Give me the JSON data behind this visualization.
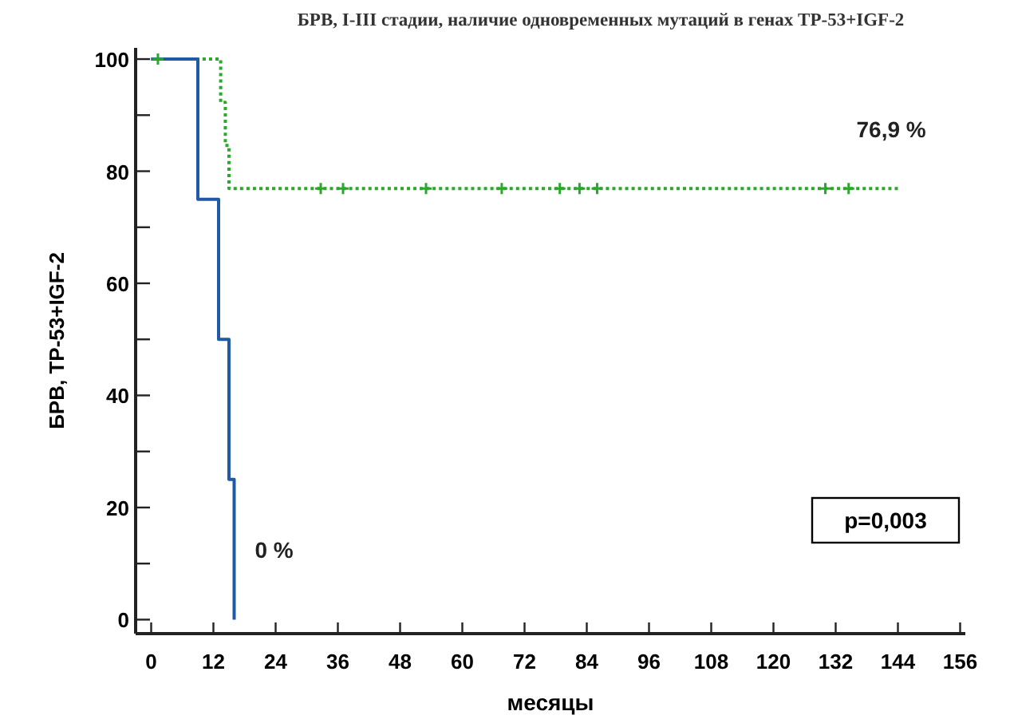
{
  "chart_data": {
    "type": "step",
    "title": "БРВ, I-III  стадии, наличие одновременных мутаций в генах TP-53+IGF-2",
    "xlabel": "месяцы",
    "ylabel": "БРВ, TP-53+IGF-2",
    "xlim": [
      -3,
      157
    ],
    "xticks": [
      0,
      12,
      24,
      36,
      48,
      60,
      72,
      84,
      96,
      108,
      120,
      132,
      144,
      156
    ],
    "ylim": [
      -2.5,
      102
    ],
    "yticks": [
      0,
      {
        "value": 10,
        "label": null
      },
      20,
      {
        "value": 30,
        "label": null
      },
      40,
      {
        "value": 50,
        "label": null
      },
      60,
      {
        "value": 70,
        "label": null
      },
      80,
      {
        "value": 90,
        "label": null
      },
      100
    ],
    "grid": false,
    "series": [
      {
        "color": "#2aa82a",
        "line_style": "dotted",
        "x": [
          0,
          13.4,
          14.3,
          15,
          144
        ],
        "values": [
          100,
          92.3,
          84.6,
          76.9,
          76.9
        ]
      },
      {
        "color": "#1f5aa6",
        "line_style": "solid",
        "x": [
          0,
          9,
          13,
          15,
          16
        ],
        "values": [
          100,
          75,
          50,
          25,
          0
        ]
      },
      {
        "type": "scatter",
        "marker": "cross",
        "color": "#2aa82a",
        "x": [
          1.3,
          32.7,
          37,
          53,
          67.6,
          78.8,
          82.6,
          86,
          130,
          134.5
        ],
        "values": [
          100,
          76.9,
          76.9,
          76.9,
          76.9,
          76.9,
          76.9,
          76.9,
          76.9,
          76.9
        ]
      }
    ],
    "annotations": [
      "76,9 %",
      "0 %",
      "p=0,003"
    ]
  }
}
